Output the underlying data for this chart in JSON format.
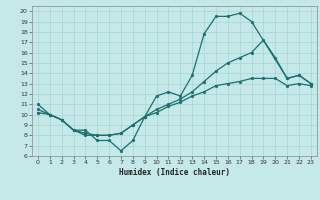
{
  "title": "",
  "xlabel": "Humidex (Indice chaleur)",
  "xlim": [
    -0.5,
    23.5
  ],
  "ylim": [
    6,
    20.5
  ],
  "xticks": [
    0,
    1,
    2,
    3,
    4,
    5,
    6,
    7,
    8,
    9,
    10,
    11,
    12,
    13,
    14,
    15,
    16,
    17,
    18,
    19,
    20,
    21,
    22,
    23
  ],
  "yticks": [
    6,
    7,
    8,
    9,
    10,
    11,
    12,
    13,
    14,
    15,
    16,
    17,
    18,
    19,
    20
  ],
  "bg_color": "#c5e8e8",
  "line_color": "#1a7070",
  "grid_color": "#a8d4d4",
  "line1_x": [
    0,
    1,
    2,
    3,
    4,
    5,
    6,
    7,
    8,
    9,
    10,
    11,
    12,
    13,
    14,
    15,
    16,
    17,
    18,
    21,
    22,
    23
  ],
  "line1_y": [
    11,
    10,
    9.5,
    8.5,
    8.5,
    7.5,
    7.5,
    6.5,
    7.5,
    9.8,
    11.8,
    12.2,
    11.8,
    13.8,
    17.8,
    19.5,
    19.5,
    19.8,
    19.0,
    13.5,
    13.8,
    13.0
  ],
  "line2_x": [
    0,
    1,
    2,
    3,
    4,
    5,
    6,
    7,
    8,
    9,
    10,
    11,
    12,
    13,
    14,
    15,
    16,
    17,
    18,
    19,
    20,
    21,
    22,
    23
  ],
  "line2_y": [
    10.5,
    10.0,
    9.5,
    8.5,
    8.2,
    8.0,
    8.0,
    8.2,
    9.0,
    9.8,
    10.5,
    11.0,
    11.5,
    12.2,
    13.2,
    14.2,
    15.0,
    15.5,
    16.0,
    17.2,
    15.5,
    13.5,
    13.8,
    13.0
  ],
  "line3_x": [
    0,
    1,
    2,
    3,
    4,
    5,
    6,
    7,
    8,
    9,
    10,
    11,
    12,
    13,
    14,
    15,
    16,
    17,
    18,
    19,
    20,
    21,
    22,
    23
  ],
  "line3_y": [
    10.2,
    10.0,
    9.5,
    8.5,
    8.0,
    8.0,
    8.0,
    8.2,
    9.0,
    9.8,
    10.2,
    10.8,
    11.2,
    11.8,
    12.2,
    12.8,
    13.0,
    13.2,
    13.5,
    13.5,
    13.5,
    12.8,
    13.0,
    12.8
  ]
}
